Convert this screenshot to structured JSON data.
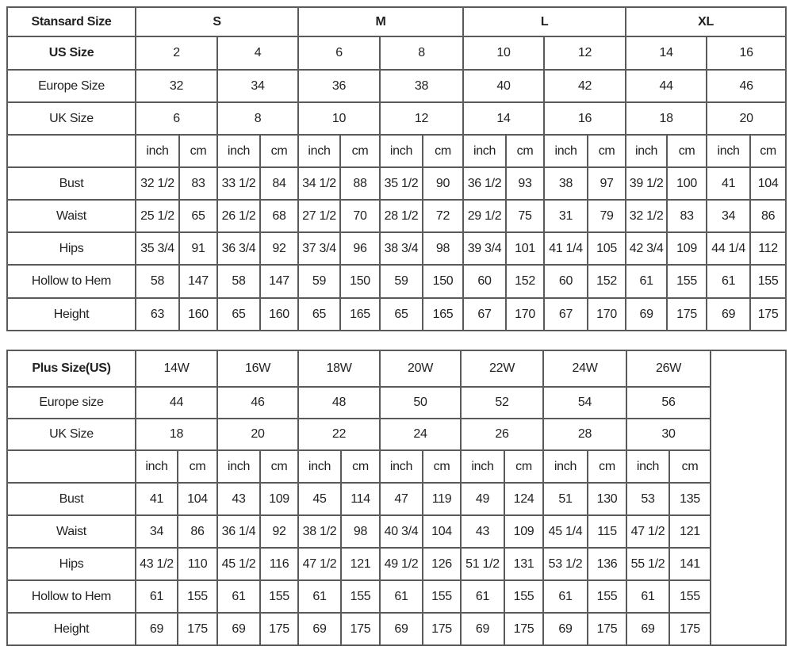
{
  "standard": {
    "title_label": "Stansard Size",
    "groups": [
      "S",
      "M",
      "L",
      "XL"
    ],
    "us_label": "US Size",
    "us": [
      "2",
      "4",
      "6",
      "8",
      "10",
      "12",
      "14",
      "16"
    ],
    "europe_label": "Europe Size",
    "europe": [
      "32",
      "34",
      "36",
      "38",
      "40",
      "42",
      "44",
      "46"
    ],
    "uk_label": "UK Size",
    "uk": [
      "6",
      "8",
      "10",
      "12",
      "14",
      "16",
      "18",
      "20"
    ],
    "units": [
      "inch",
      "cm"
    ],
    "measurements": [
      {
        "label": "Bust",
        "values": [
          "32 1/2",
          "83",
          "33 1/2",
          "84",
          "34 1/2",
          "88",
          "35 1/2",
          "90",
          "36 1/2",
          "93",
          "38",
          "97",
          "39 1/2",
          "100",
          "41",
          "104"
        ]
      },
      {
        "label": "Waist",
        "values": [
          "25 1/2",
          "65",
          "26 1/2",
          "68",
          "27 1/2",
          "70",
          "28 1/2",
          "72",
          "29 1/2",
          "75",
          "31",
          "79",
          "32 1/2",
          "83",
          "34",
          "86"
        ]
      },
      {
        "label": "Hips",
        "values": [
          "35 3/4",
          "91",
          "36 3/4",
          "92",
          "37 3/4",
          "96",
          "38 3/4",
          "98",
          "39 3/4",
          "101",
          "41 1/4",
          "105",
          "42 3/4",
          "109",
          "44 1/4",
          "112"
        ]
      },
      {
        "label": "Hollow to Hem",
        "values": [
          "58",
          "147",
          "58",
          "147",
          "59",
          "150",
          "59",
          "150",
          "60",
          "152",
          "60",
          "152",
          "61",
          "155",
          "61",
          "155"
        ]
      },
      {
        "label": "Height",
        "values": [
          "63",
          "160",
          "65",
          "160",
          "65",
          "165",
          "65",
          "165",
          "67",
          "170",
          "67",
          "170",
          "69",
          "175",
          "69",
          "175"
        ]
      }
    ]
  },
  "plus": {
    "title_label": "Plus Size(US)",
    "us": [
      "14W",
      "16W",
      "18W",
      "20W",
      "22W",
      "24W",
      "26W"
    ],
    "europe_label": "Europe size",
    "europe": [
      "44",
      "46",
      "48",
      "50",
      "52",
      "54",
      "56"
    ],
    "uk_label": "UK Size",
    "uk": [
      "18",
      "20",
      "22",
      "24",
      "26",
      "28",
      "30"
    ],
    "units": [
      "inch",
      "cm"
    ],
    "measurements": [
      {
        "label": "Bust",
        "values": [
          "41",
          "104",
          "43",
          "109",
          "45",
          "114",
          "47",
          "119",
          "49",
          "124",
          "51",
          "130",
          "53",
          "135"
        ]
      },
      {
        "label": "Waist",
        "values": [
          "34",
          "86",
          "36 1/4",
          "92",
          "38 1/2",
          "98",
          "40 3/4",
          "104",
          "43",
          "109",
          "45 1/4",
          "115",
          "47 1/2",
          "121"
        ]
      },
      {
        "label": "Hips",
        "values": [
          "43 1/2",
          "110",
          "45 1/2",
          "116",
          "47 1/2",
          "121",
          "49 1/2",
          "126",
          "51 1/2",
          "131",
          "53 1/2",
          "136",
          "55 1/2",
          "141"
        ]
      },
      {
        "label": "Hollow to Hem",
        "values": [
          "61",
          "155",
          "61",
          "155",
          "61",
          "155",
          "61",
          "155",
          "61",
          "155",
          "61",
          "155",
          "61",
          "155"
        ]
      },
      {
        "label": "Height",
        "values": [
          "69",
          "175",
          "69",
          "175",
          "69",
          "175",
          "69",
          "175",
          "69",
          "175",
          "69",
          "175",
          "69",
          "175"
        ]
      }
    ]
  }
}
